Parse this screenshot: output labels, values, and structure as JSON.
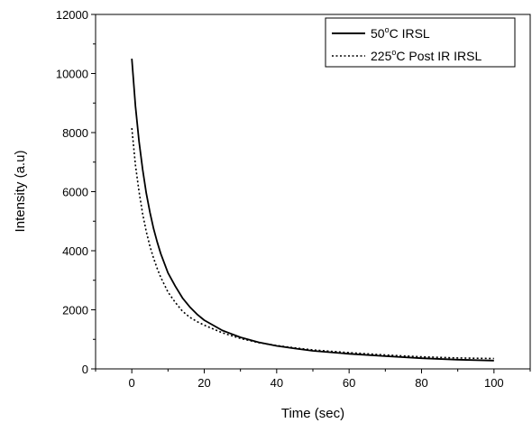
{
  "chart_data": {
    "type": "line",
    "title": "",
    "xlabel": "Time (sec)",
    "ylabel": "Intensity (a.u)",
    "xlim": [
      -10,
      110
    ],
    "ylim": [
      0,
      12000
    ],
    "x_ticks": [
      0,
      20,
      40,
      60,
      80,
      100
    ],
    "x_tick_labels": [
      "0",
      "20",
      "40",
      "60",
      "80",
      "100"
    ],
    "y_ticks": [
      0,
      2000,
      4000,
      6000,
      8000,
      10000,
      12000
    ],
    "y_tick_labels": [
      "0",
      "2000",
      "4000",
      "6000",
      "8000",
      "10000",
      "12000"
    ],
    "grid": false,
    "legend_position": "top-right",
    "x": [
      0,
      1,
      2,
      3,
      4,
      5,
      6,
      7,
      8,
      10,
      12,
      14,
      16,
      18,
      20,
      25,
      30,
      35,
      40,
      45,
      50,
      60,
      70,
      80,
      90,
      100
    ],
    "series": [
      {
        "name_parts": [
          "50",
          "o",
          "C IRSL"
        ],
        "style": "solid",
        "values": [
          10500,
          8900,
          7700,
          6750,
          5950,
          5300,
          4750,
          4300,
          3900,
          3250,
          2800,
          2400,
          2100,
          1850,
          1650,
          1300,
          1070,
          900,
          780,
          690,
          610,
          510,
          430,
          360,
          310,
          280
        ]
      },
      {
        "name_parts": [
          "225",
          "o",
          "C Post IR IRSL"
        ],
        "style": "dotted",
        "values": [
          8150,
          6900,
          6000,
          5250,
          4650,
          4150,
          3750,
          3400,
          3100,
          2600,
          2250,
          1950,
          1750,
          1600,
          1480,
          1220,
          1030,
          890,
          790,
          710,
          640,
          550,
          470,
          410,
          370,
          350
        ]
      }
    ]
  }
}
